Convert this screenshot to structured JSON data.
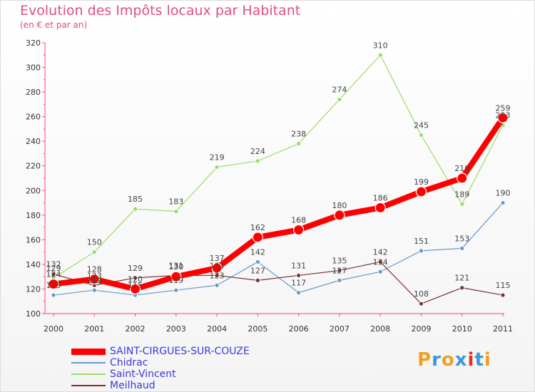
{
  "title": "Evolution des Impôts locaux par Habitant",
  "subtitle": "(en € et par an)",
  "logo": {
    "letters": [
      "P",
      "r",
      "o",
      "x",
      "i",
      "t",
      "i"
    ],
    "colors": [
      "#f0a020",
      "#3a9ad9",
      "#f0a020",
      "#3a9ad9",
      "#e53020",
      "#3a9ad9",
      "#f0a020"
    ]
  },
  "chart_data": {
    "type": "line",
    "x": [
      "2000",
      "2001",
      "2002",
      "2003",
      "2004",
      "2005",
      "2006",
      "2007",
      "2008",
      "2009",
      "2010",
      "2011"
    ],
    "ylim": [
      100,
      320
    ],
    "yticks": [
      100,
      120,
      140,
      160,
      180,
      200,
      220,
      240,
      260,
      280,
      300,
      320
    ],
    "grid": false,
    "legend_position": "bottom-left",
    "series": [
      {
        "name": "SAINT-CIRGUES-SUR-COUZE",
        "color": "#ff0000",
        "values": [
          124,
          128,
          120,
          130,
          137,
          162,
          168,
          180,
          186,
          199,
          210,
          259
        ],
        "labels": [
          "124",
          "128",
          "120",
          "130",
          "137",
          "162",
          "168",
          "180",
          "186",
          "199",
          "210",
          "259"
        ]
      },
      {
        "name": "Chidrac",
        "color": "#6699cc",
        "values": [
          115,
          119,
          115,
          119,
          123,
          142,
          117,
          127,
          134,
          151,
          153,
          190
        ],
        "labels": [
          "115",
          "119",
          "115",
          "119",
          "123",
          "142",
          "117",
          "127",
          "134",
          "151",
          "153",
          "190"
        ]
      },
      {
        "name": "Saint-Vincent",
        "color": "#99dd66",
        "values": [
          129,
          150,
          185,
          183,
          219,
          224,
          238,
          274,
          310,
          245,
          189,
          253
        ],
        "labels": [
          "129",
          "150",
          "185",
          "183",
          "219",
          "224",
          "238",
          "274",
          "310",
          "245",
          "189",
          "253"
        ]
      },
      {
        "name": "Meilhaud",
        "color": "#773333",
        "values": [
          132,
          123,
          129,
          131,
          131,
          127,
          131,
          135,
          142,
          108,
          121,
          115
        ],
        "labels": [
          "132",
          "123",
          "129",
          "131",
          "131",
          "127",
          "131",
          "135",
          "142",
          "108",
          "121",
          "115"
        ]
      }
    ]
  }
}
